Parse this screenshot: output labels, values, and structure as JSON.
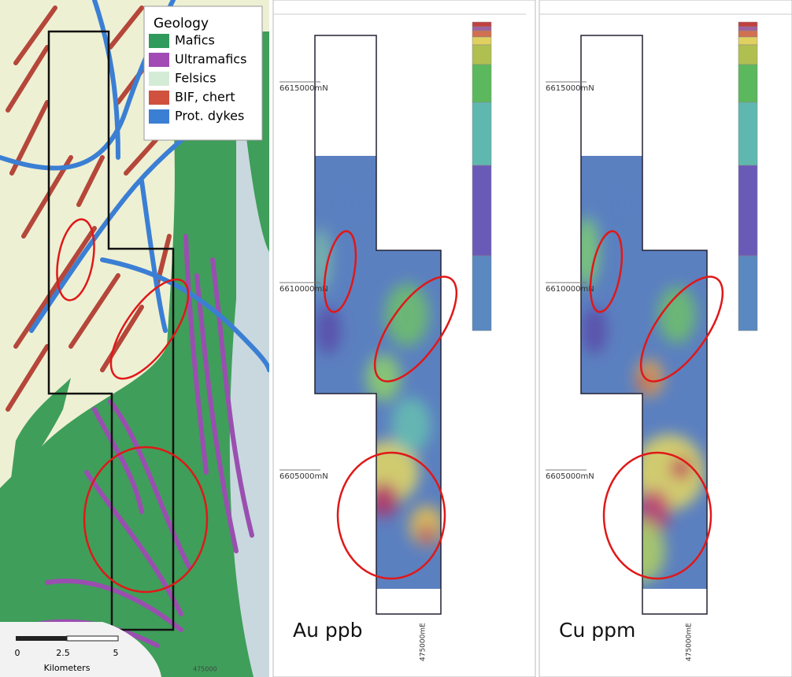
{
  "geology_panel": {
    "legend": {
      "title": "Geology",
      "items": [
        {
          "label": "Mafics",
          "color": "#2f9a5c"
        },
        {
          "label": "Ultramafics",
          "color": "#a24bb4"
        },
        {
          "label": "Felsics",
          "color": "#d4ecd6"
        },
        {
          "label": "BIF, chert",
          "color": "#d0523e"
        },
        {
          "label": "Prot. dykes",
          "color": "#3b7fd4"
        }
      ]
    },
    "scale_bar": {
      "ticks": [
        "0",
        "2.5",
        "5"
      ],
      "unit": "Kilometers"
    },
    "easting": "475000"
  },
  "anomaly_panels": [
    {
      "label": "Au ppb",
      "northings": [
        "6615000mN",
        "6610000mN",
        "6605000mN"
      ],
      "easting": "475000mE"
    },
    {
      "label": "Cu ppm",
      "northings": [
        "6615000mN",
        "6610000mN",
        "6605000mN"
      ],
      "easting": "475000mE"
    }
  ]
}
